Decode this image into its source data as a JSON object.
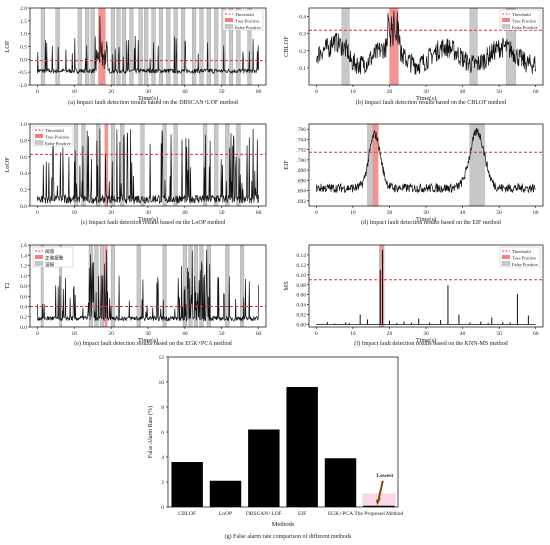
{
  "chart_data": [
    {
      "type": "line",
      "id": "a",
      "ylabel": "LOF",
      "xlabel": "Time(s)",
      "xlim": [
        -2,
        62
      ],
      "ylim": [
        -1.0,
        2.0
      ],
      "xticks": [
        0,
        10,
        20,
        30,
        40,
        50,
        60
      ],
      "yticks": [
        -1.0,
        -0.5,
        0.0,
        0.5,
        1.0,
        1.5,
        2.0
      ],
      "ytick_labels": [
        "-1.0",
        "-0.5",
        "0.0",
        "0.5",
        "1.0",
        "1.5",
        "2.0"
      ],
      "threshold": -0.05,
      "legend": [
        "Threshold",
        "True Positive",
        "False Positive"
      ],
      "legend_position": "top-right",
      "true_positive": [
        [
          16.5,
          18.5
        ]
      ],
      "false_positive": [
        [
          1,
          2
        ],
        [
          5,
          6
        ],
        [
          11,
          12
        ],
        [
          13,
          14
        ],
        [
          14.5,
          15.5
        ],
        [
          20,
          21
        ],
        [
          21.5,
          22.5
        ],
        [
          23,
          24
        ],
        [
          25,
          26
        ],
        [
          27.5,
          28.5
        ],
        [
          29,
          30
        ],
        [
          31,
          32
        ],
        [
          33,
          34
        ],
        [
          35,
          36
        ],
        [
          37,
          38
        ],
        [
          39,
          40
        ],
        [
          42,
          43
        ],
        [
          44,
          45
        ],
        [
          46,
          47
        ],
        [
          48,
          49
        ],
        [
          50,
          51
        ],
        [
          52,
          53
        ],
        [
          54,
          55
        ],
        [
          57,
          58
        ]
      ],
      "caption": "(a)   Impact fault detection results based on the DBSCAN+LOF method"
    },
    {
      "type": "line",
      "id": "b",
      "ylabel": "CBLOF",
      "xlabel": "Time(s)",
      "xlim": [
        -2,
        62
      ],
      "ylim": [
        0.0,
        0.45
      ],
      "xticks": [
        0,
        10,
        20,
        30,
        40,
        50,
        60
      ],
      "yticks": [
        0.1,
        0.2,
        0.3,
        0.4
      ],
      "ytick_labels": [
        "0.1",
        "0.2",
        "0.3",
        "0.4"
      ],
      "threshold": 0.32,
      "legend": [
        "Threshold",
        "True Positive",
        "False Positive"
      ],
      "legend_position": "top-right",
      "true_positive": [
        [
          20,
          22.5
        ]
      ],
      "false_positive": [
        [
          7,
          9
        ],
        [
          42,
          44
        ],
        [
          52,
          54.5
        ]
      ],
      "caption": "(b)   Impact fault detection results based on the CBLOF method"
    },
    {
      "type": "line",
      "id": "c",
      "ylabel": "LoOP",
      "xlabel": "Time(s)",
      "xlim": [
        -2,
        62
      ],
      "ylim": [
        0.0,
        1.0
      ],
      "xticks": [
        0,
        10,
        20,
        30,
        40,
        50,
        60
      ],
      "yticks": [
        0.0,
        0.2,
        0.4,
        0.6,
        0.8,
        1.0
      ],
      "ytick_labels": [
        "0.0",
        "0.2",
        "0.4",
        "0.6",
        "0.8",
        "1.0"
      ],
      "threshold": 0.63,
      "legend": [
        "Threshold",
        "True Positive",
        "False Positive"
      ],
      "legend_position": "top-left",
      "true_positive": [
        [
          18.2,
          19.2
        ]
      ],
      "false_positive": [
        [
          10,
          11
        ],
        [
          12,
          13
        ],
        [
          16,
          17
        ],
        [
          20,
          21
        ],
        [
          22.5,
          23.5
        ],
        [
          28,
          29
        ],
        [
          34,
          35
        ],
        [
          37,
          38
        ],
        [
          45,
          46
        ],
        [
          48,
          49
        ],
        [
          51,
          52
        ],
        [
          54,
          55
        ]
      ],
      "caption": "(c) Impact fault detection results based on the LoOP method"
    },
    {
      "type": "line",
      "id": "d",
      "ylabel": "EIF",
      "xlabel": "Time(s)",
      "xlim": [
        -2,
        62
      ],
      "ylim": [
        0.691,
        0.707
      ],
      "xticks": [
        0,
        10,
        20,
        30,
        40,
        50,
        60
      ],
      "yticks": [
        0.692,
        0.694,
        0.696,
        0.698,
        0.7,
        0.702,
        0.704,
        0.706
      ],
      "ytick_labels": [
        ".692",
        ".694",
        ".696",
        ".698",
        ".700",
        ".702",
        ".704",
        ".706"
      ],
      "threshold": 0.7015,
      "legend": [],
      "true_positive": [
        [
          15.5,
          17
        ]
      ],
      "false_positive": [
        [
          14,
          15.5
        ],
        [
          42,
          46
        ]
      ],
      "caption": "(d) Impact fault detection results based on the EIF method"
    },
    {
      "type": "line",
      "id": "e",
      "ylabel": "T2",
      "xlabel": "Time(s)",
      "xlim": [
        -2,
        62
      ],
      "ylim": [
        0.0,
        1.6
      ],
      "xticks": [
        0,
        10,
        20,
        30,
        40,
        50,
        60
      ],
      "yticks": [
        0.0,
        0.2,
        0.4,
        0.6,
        0.8,
        1.0,
        1.2,
        1.4,
        1.6
      ],
      "ytick_labels": [
        "0.0",
        "0.2",
        "0.4",
        "0.6",
        "0.8",
        "1.0",
        "1.2",
        "1.4",
        "1.6"
      ],
      "threshold": 0.4,
      "legend": [
        "阈值",
        "正确报警",
        "误报"
      ],
      "legend_position": "top-left",
      "true_positive": [
        [
          18.2,
          19
        ]
      ],
      "false_positive": [
        [
          1,
          1.6
        ],
        [
          6,
          6.6
        ],
        [
          14,
          15
        ],
        [
          15.5,
          16.5
        ],
        [
          17,
          18
        ],
        [
          20,
          21
        ],
        [
          27,
          28
        ],
        [
          34,
          35
        ],
        [
          39.5,
          40.5
        ],
        [
          41,
          42
        ],
        [
          42.5,
          43.5
        ],
        [
          44,
          45
        ],
        [
          46,
          47
        ],
        [
          51,
          52
        ],
        [
          55,
          56
        ]
      ],
      "caption": "(e) Impact fault detection results based on the EGK+PCA method"
    },
    {
      "type": "line",
      "id": "f",
      "ylabel": "MS",
      "xlabel": "Time(s)",
      "xlim": [
        -2,
        62
      ],
      "ylim": [
        -0.005,
        0.16
      ],
      "xticks": [
        0,
        10,
        20,
        30,
        40,
        50,
        60
      ],
      "yticks": [
        0.0,
        0.02,
        0.04,
        0.06,
        0.08,
        0.1,
        0.12,
        0.14
      ],
      "ytick_labels": [
        "0.00",
        "0.02",
        "0.04",
        "0.06",
        "0.08",
        "0.10",
        "0.12",
        "0.14"
      ],
      "threshold": 0.09,
      "legend": [
        "Threshold",
        "True Positive",
        "False Positive"
      ],
      "legend_position": "top-right",
      "true_positive": [
        [
          17.7,
          18.6
        ]
      ],
      "false_positive": [
        [
          17.2,
          17.6
        ]
      ],
      "caption": "(f) Impact fault detection results based on the KNN-MS method"
    },
    {
      "type": "bar",
      "id": "g",
      "categories": [
        "CBLOF",
        "LoOP",
        "DBSCAN+LOF",
        "EIF",
        "EGK+PCA",
        "The Proposed Method"
      ],
      "values": [
        3.6,
        2.1,
        6.2,
        9.6,
        3.9,
        0.1
      ],
      "ylabel": "False Alarm Rate (%)",
      "xlabel": "Methods",
      "ylim": [
        0,
        12
      ],
      "yticks": [
        0,
        2,
        4,
        6,
        8,
        10,
        12
      ],
      "ytick_labels": [
        "0",
        "2",
        "4",
        "6",
        "8",
        "10",
        "12"
      ],
      "annotation": "Lowest",
      "caption": "(g)  False alarm rate comparison of different methods"
    }
  ],
  "colors": {
    "line": "#111111",
    "threshold": "#e03030",
    "true_positive": "#f28080",
    "false_positive": "#c8c8c8",
    "bar": "#000000",
    "highlight": "#f8d8e8",
    "arrow": "#8b4513"
  }
}
